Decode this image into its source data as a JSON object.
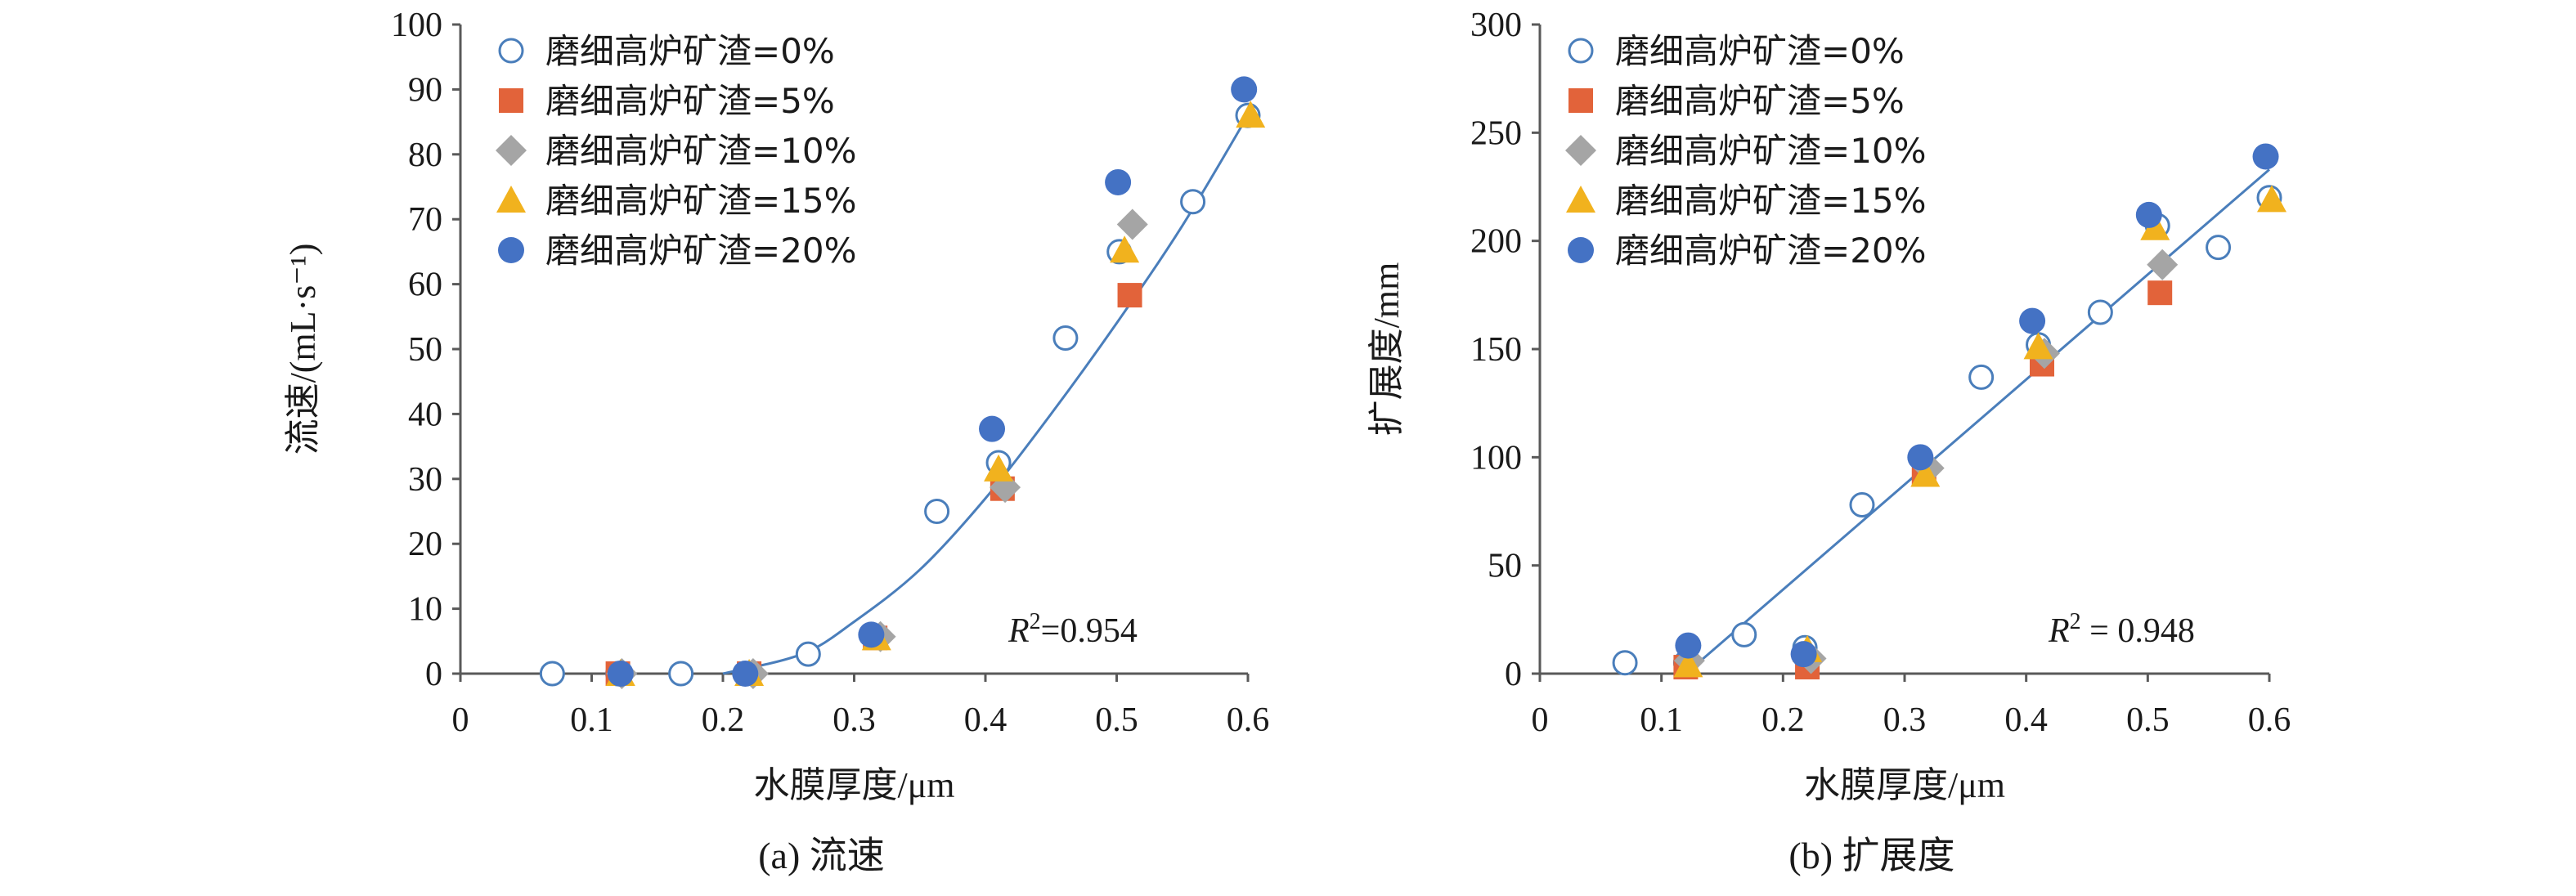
{
  "chart_data": [
    {
      "type": "scatter",
      "title": "",
      "caption": "(a) 流速",
      "xlabel": "水膜厚度/μm",
      "ylabel": "流速/(mL·s⁻¹)",
      "xlim": [
        0,
        0.6
      ],
      "ylim": [
        0,
        100
      ],
      "xticks": [
        0,
        0.1,
        0.2,
        0.3,
        0.4,
        0.5,
        0.6
      ],
      "xtick_labels": [
        "0",
        "0.1",
        "0.2",
        "0.3",
        "0.4",
        "0.5",
        "0.6"
      ],
      "yticks": [
        0,
        10,
        20,
        30,
        40,
        50,
        60,
        70,
        80,
        90,
        100
      ],
      "ytick_labels": [
        "0",
        "10",
        "20",
        "30",
        "40",
        "50",
        "60",
        "70",
        "80",
        "90",
        "100"
      ],
      "r2_label": "R",
      "r2_exp": "2",
      "r2_value": "=0.954",
      "legend_position": "top-left",
      "series": [
        {
          "name": "磨细高炉矿渣=0%",
          "marker": "circle-open",
          "color": "#4a7ebb",
          "x": [
            0.07,
            0.12,
            0.168,
            0.218,
            0.265,
            0.363,
            0.41,
            0.461,
            0.502,
            0.558,
            0.6
          ],
          "y": [
            0,
            0,
            0,
            0,
            3,
            25,
            32.5,
            51.7,
            65,
            72.7,
            86
          ]
        },
        {
          "name": "磨细高炉矿渣=5%",
          "marker": "square",
          "color": "#e2633a",
          "x": [
            0.12,
            0.22,
            0.316,
            0.413,
            0.51
          ],
          "y": [
            0,
            0,
            5.5,
            28.5,
            58.3
          ]
        },
        {
          "name": "磨细高炉矿渣=10%",
          "marker": "diamond",
          "color": "#a5a5a5",
          "x": [
            0.123,
            0.223,
            0.32,
            0.415,
            0.512
          ],
          "y": [
            0,
            0,
            5.7,
            28.7,
            69.2
          ]
        },
        {
          "name": "磨细高炉矿渣=15%",
          "marker": "triangle",
          "color": "#f1b21e",
          "x": [
            0.122,
            0.22,
            0.317,
            0.41,
            0.506,
            0.602
          ],
          "y": [
            0,
            0,
            5.5,
            31.5,
            65.2,
            86
          ]
        },
        {
          "name": "磨细高炉矿渣=20%",
          "marker": "circle",
          "color": "#4472c4",
          "x": [
            0.122,
            0.217,
            0.313,
            0.405,
            0.501,
            0.597
          ],
          "y": [
            0,
            0,
            6,
            37.7,
            75.7,
            90
          ]
        }
      ],
      "fit": {
        "type": "polynomial",
        "color": "#4a7ebb",
        "x_start": 0.2,
        "points": [
          [
            0.2,
            0
          ],
          [
            0.26,
            3
          ],
          [
            0.3,
            8
          ],
          [
            0.35,
            16
          ],
          [
            0.4,
            27
          ],
          [
            0.45,
            40
          ],
          [
            0.5,
            54
          ],
          [
            0.55,
            69
          ],
          [
            0.6,
            86
          ]
        ]
      }
    },
    {
      "type": "scatter",
      "title": "",
      "caption": "(b) 扩展度",
      "xlabel": "水膜厚度/μm",
      "ylabel": "扩展度/mm",
      "xlim": [
        0,
        0.6
      ],
      "ylim": [
        0,
        300
      ],
      "xticks": [
        0,
        0.1,
        0.2,
        0.3,
        0.4,
        0.5,
        0.6
      ],
      "xtick_labels": [
        "0",
        "0.1",
        "0.2",
        "0.3",
        "0.4",
        "0.5",
        "0.6"
      ],
      "yticks": [
        0,
        50,
        100,
        150,
        200,
        250,
        300
      ],
      "ytick_labels": [
        "0",
        "50",
        "100",
        "150",
        "200",
        "250",
        "300"
      ],
      "r2_label": "R",
      "r2_exp": "2",
      "r2_value": " = 0.948",
      "legend_position": "top-left",
      "series": [
        {
          "name": "磨细高炉矿渣=0%",
          "marker": "circle-open",
          "color": "#4a7ebb",
          "x": [
            0.07,
            0.12,
            0.168,
            0.218,
            0.265,
            0.363,
            0.41,
            0.461,
            0.508,
            0.558,
            0.6
          ],
          "y": [
            5,
            5,
            18,
            12,
            78,
            137,
            152,
            167,
            207,
            197,
            220
          ]
        },
        {
          "name": "磨细高炉矿渣=5%",
          "marker": "square",
          "color": "#e2633a",
          "x": [
            0.12,
            0.22,
            0.316,
            0.413,
            0.51
          ],
          "y": [
            3,
            3,
            93,
            143,
            176
          ]
        },
        {
          "name": "磨细高炉矿渣=10%",
          "marker": "diamond",
          "color": "#a5a5a5",
          "x": [
            0.123,
            0.223,
            0.32,
            0.415,
            0.512
          ],
          "y": [
            6,
            7,
            95,
            148,
            189
          ]
        },
        {
          "name": "磨细高炉矿渣=15%",
          "marker": "triangle",
          "color": "#f1b21e",
          "x": [
            0.122,
            0.22,
            0.317,
            0.41,
            0.506,
            0.602
          ],
          "y": [
            4,
            11,
            92,
            151,
            206,
            219
          ]
        },
        {
          "name": "磨细高炉矿渣=20%",
          "marker": "circle",
          "color": "#4472c4",
          "x": [
            0.122,
            0.217,
            0.313,
            0.405,
            0.501,
            0.597
          ],
          "y": [
            13,
            9,
            100,
            163,
            212,
            239
          ]
        }
      ],
      "fit": {
        "type": "linear",
        "color": "#4a7ebb",
        "points": [
          [
            0.12,
            0
          ],
          [
            0.6,
            233
          ]
        ]
      }
    }
  ]
}
